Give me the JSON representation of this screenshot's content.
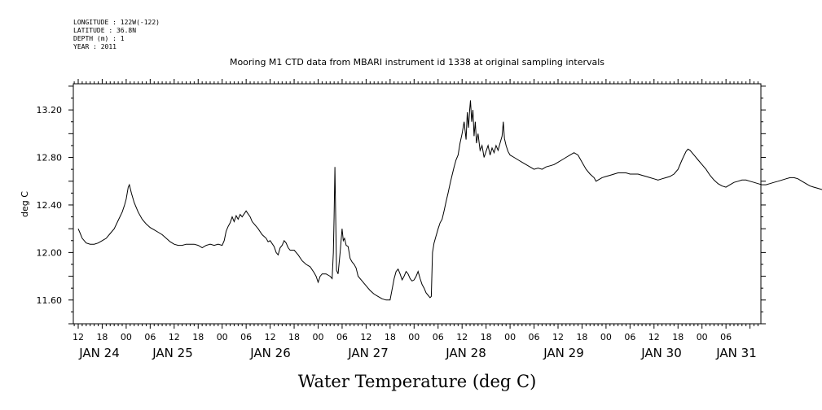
{
  "header": {
    "meta_lines": [
      "LONGITUDE : 122W(-122)",
      "LATITUDE : 36.8N",
      "DEPTH (m) : 1",
      "YEAR : 2011"
    ]
  },
  "chart_data": {
    "type": "line",
    "title": "Mooring M1 CTD data from MBARI instrument id 1338 at original sampling intervals",
    "xlabel": "Water Temperature (deg C)",
    "ylabel": "deg C",
    "ylim": [
      11.4,
      13.42
    ],
    "xlim_hours": [
      12,
      189
    ],
    "y_ticks": [
      "11.60",
      "12.00",
      "12.40",
      "12.80",
      "13.20"
    ],
    "hour_ticks": [
      "12",
      "18",
      "00",
      "06",
      "12",
      "18",
      "00",
      "06",
      "12",
      "18",
      "00",
      "06",
      "12",
      "18",
      "00",
      "06",
      "12",
      "18",
      "00",
      "06",
      "12",
      "18",
      "00",
      "06",
      "12",
      "18",
      "00",
      "06"
    ],
    "day_labels": [
      "JAN 24",
      "JAN 25",
      "JAN 26",
      "JAN 27",
      "JAN 28",
      "JAN 29",
      "JAN 30",
      "JAN 31"
    ],
    "grid": false,
    "series": [
      {
        "values": [
          [
            12.0,
            12.2
          ],
          [
            12.5,
            12.16
          ],
          [
            13.0,
            12.12
          ],
          [
            14.0,
            12.08
          ],
          [
            15.0,
            12.07
          ],
          [
            16.0,
            12.07
          ],
          [
            17.0,
            12.08
          ],
          [
            18.0,
            12.1
          ],
          [
            19.0,
            12.12
          ],
          [
            20.0,
            12.16
          ],
          [
            21.0,
            12.2
          ],
          [
            22.0,
            12.27
          ],
          [
            23.0,
            12.34
          ],
          [
            23.6,
            12.4
          ],
          [
            24.0,
            12.45
          ],
          [
            24.5,
            12.55
          ],
          [
            24.8,
            12.57
          ],
          [
            25.3,
            12.5
          ],
          [
            26.0,
            12.42
          ],
          [
            27.0,
            12.34
          ],
          [
            28.0,
            12.28
          ],
          [
            29.0,
            12.24
          ],
          [
            30.0,
            12.21
          ],
          [
            31.0,
            12.19
          ],
          [
            32.0,
            12.17
          ],
          [
            33.0,
            12.15
          ],
          [
            34.0,
            12.12
          ],
          [
            35.0,
            12.09
          ],
          [
            36.0,
            12.07
          ],
          [
            37.0,
            12.06
          ],
          [
            38.0,
            12.06
          ],
          [
            39.0,
            12.07
          ],
          [
            40.0,
            12.07
          ],
          [
            41.0,
            12.07
          ],
          [
            42.0,
            12.06
          ],
          [
            43.0,
            12.04
          ],
          [
            44.0,
            12.06
          ],
          [
            45.0,
            12.07
          ],
          [
            46.0,
            12.06
          ],
          [
            47.0,
            12.07
          ],
          [
            48.0,
            12.06
          ],
          [
            48.5,
            12.1
          ],
          [
            49.0,
            12.18
          ],
          [
            49.5,
            12.22
          ],
          [
            50.0,
            12.25
          ],
          [
            50.5,
            12.3
          ],
          [
            51.0,
            12.26
          ],
          [
            51.5,
            12.31
          ],
          [
            52.0,
            12.28
          ],
          [
            52.5,
            12.32
          ],
          [
            53.0,
            12.3
          ],
          [
            54.0,
            12.35
          ],
          [
            55.0,
            12.3
          ],
          [
            55.5,
            12.26
          ],
          [
            56.0,
            12.24
          ],
          [
            57.0,
            12.2
          ],
          [
            58.0,
            12.15
          ],
          [
            59.0,
            12.12
          ],
          [
            59.5,
            12.09
          ],
          [
            60.0,
            12.1
          ],
          [
            61.0,
            12.05
          ],
          [
            61.5,
            12.0
          ],
          [
            62.0,
            11.98
          ],
          [
            62.5,
            12.04
          ],
          [
            63.0,
            12.06
          ],
          [
            63.5,
            12.1
          ],
          [
            64.0,
            12.08
          ],
          [
            64.5,
            12.04
          ],
          [
            65.0,
            12.02
          ],
          [
            66.0,
            12.02
          ],
          [
            67.0,
            11.98
          ],
          [
            68.0,
            11.93
          ],
          [
            69.0,
            11.9
          ],
          [
            70.0,
            11.88
          ],
          [
            71.0,
            11.83
          ],
          [
            71.5,
            11.8
          ],
          [
            72.0,
            11.75
          ],
          [
            72.5,
            11.8
          ],
          [
            73.0,
            11.82
          ],
          [
            74.0,
            11.82
          ],
          [
            75.0,
            11.8
          ],
          [
            75.5,
            11.78
          ],
          [
            75.8,
            12.0
          ],
          [
            76.0,
            12.3
          ],
          [
            76.2,
            12.72
          ],
          [
            76.4,
            12.28
          ],
          [
            76.6,
            11.85
          ],
          [
            77.0,
            11.82
          ],
          [
            77.5,
            12.0
          ],
          [
            78.0,
            12.2
          ],
          [
            78.3,
            12.1
          ],
          [
            78.6,
            12.12
          ],
          [
            79.0,
            12.06
          ],
          [
            79.5,
            12.05
          ],
          [
            80.0,
            11.95
          ],
          [
            80.5,
            11.92
          ],
          [
            81.0,
            11.9
          ],
          [
            81.5,
            11.87
          ],
          [
            82.0,
            11.8
          ],
          [
            83.0,
            11.76
          ],
          [
            84.0,
            11.72
          ],
          [
            85.0,
            11.68
          ],
          [
            86.0,
            11.65
          ],
          [
            87.0,
            11.63
          ],
          [
            88.0,
            11.61
          ],
          [
            89.0,
            11.6
          ],
          [
            90.0,
            11.6
          ],
          [
            91.0,
            11.78
          ],
          [
            91.5,
            11.84
          ],
          [
            92.0,
            11.86
          ],
          [
            92.5,
            11.82
          ],
          [
            93.0,
            11.77
          ],
          [
            93.5,
            11.8
          ],
          [
            94.0,
            11.84
          ],
          [
            94.5,
            11.82
          ],
          [
            95.0,
            11.78
          ],
          [
            95.5,
            11.76
          ],
          [
            96.0,
            11.77
          ],
          [
            96.5,
            11.8
          ],
          [
            97.0,
            11.84
          ],
          [
            97.5,
            11.78
          ],
          [
            98.0,
            11.73
          ],
          [
            98.5,
            11.7
          ],
          [
            99.0,
            11.66
          ],
          [
            99.5,
            11.64
          ],
          [
            100.0,
            11.62
          ],
          [
            100.3,
            11.63
          ],
          [
            100.6,
            12.0
          ],
          [
            101.0,
            12.08
          ],
          [
            101.5,
            12.14
          ],
          [
            102.0,
            12.2
          ],
          [
            102.5,
            12.25
          ],
          [
            103.0,
            12.28
          ],
          [
            103.5,
            12.35
          ],
          [
            104.0,
            12.43
          ],
          [
            104.5,
            12.5
          ],
          [
            105.0,
            12.58
          ],
          [
            105.5,
            12.65
          ],
          [
            106.0,
            12.72
          ],
          [
            106.5,
            12.78
          ],
          [
            107.0,
            12.82
          ],
          [
            107.5,
            12.92
          ],
          [
            108.0,
            13.0
          ],
          [
            108.5,
            13.1
          ],
          [
            109.0,
            12.95
          ],
          [
            109.3,
            13.18
          ],
          [
            109.6,
            13.05
          ],
          [
            109.9,
            13.2
          ],
          [
            110.1,
            13.28
          ],
          [
            110.4,
            13.1
          ],
          [
            110.7,
            13.2
          ],
          [
            111.0,
            12.98
          ],
          [
            111.3,
            13.1
          ],
          [
            111.6,
            12.92
          ],
          [
            112.0,
            13.0
          ],
          [
            112.5,
            12.86
          ],
          [
            113.0,
            12.9
          ],
          [
            113.5,
            12.8
          ],
          [
            114.0,
            12.85
          ],
          [
            114.5,
            12.9
          ],
          [
            115.0,
            12.82
          ],
          [
            115.5,
            12.88
          ],
          [
            116.0,
            12.84
          ],
          [
            116.5,
            12.9
          ],
          [
            117.0,
            12.86
          ],
          [
            117.5,
            12.92
          ],
          [
            118.0,
            12.98
          ],
          [
            118.3,
            13.1
          ],
          [
            118.6,
            12.96
          ],
          [
            119.0,
            12.9
          ],
          [
            119.5,
            12.85
          ],
          [
            120.0,
            12.82
          ],
          [
            121.0,
            12.8
          ],
          [
            122.0,
            12.78
          ],
          [
            123.0,
            12.76
          ],
          [
            124.0,
            12.74
          ],
          [
            125.0,
            12.72
          ],
          [
            126.0,
            12.7
          ],
          [
            127.0,
            12.71
          ],
          [
            128.0,
            12.7
          ],
          [
            129.0,
            12.72
          ],
          [
            130.0,
            12.73
          ],
          [
            131.0,
            12.74
          ],
          [
            132.0,
            12.76
          ],
          [
            133.0,
            12.78
          ],
          [
            134.0,
            12.8
          ],
          [
            135.0,
            12.82
          ],
          [
            136.0,
            12.84
          ],
          [
            137.0,
            12.82
          ],
          [
            138.0,
            12.76
          ],
          [
            139.0,
            12.7
          ],
          [
            140.0,
            12.66
          ],
          [
            141.0,
            12.63
          ],
          [
            141.5,
            12.6
          ],
          [
            142.0,
            12.61
          ],
          [
            143.0,
            12.63
          ],
          [
            144.0,
            12.64
          ],
          [
            145.0,
            12.65
          ],
          [
            146.0,
            12.66
          ],
          [
            147.0,
            12.67
          ],
          [
            148.0,
            12.67
          ],
          [
            149.0,
            12.67
          ],
          [
            150.0,
            12.66
          ],
          [
            151.0,
            12.66
          ],
          [
            152.0,
            12.66
          ],
          [
            153.0,
            12.65
          ],
          [
            154.0,
            12.64
          ],
          [
            155.0,
            12.63
          ],
          [
            156.0,
            12.62
          ],
          [
            157.0,
            12.61
          ],
          [
            158.0,
            12.62
          ],
          [
            159.0,
            12.63
          ],
          [
            160.0,
            12.64
          ],
          [
            161.0,
            12.66
          ],
          [
            162.0,
            12.7
          ],
          [
            163.0,
            12.78
          ],
          [
            164.0,
            12.85
          ],
          [
            164.5,
            12.87
          ],
          [
            165.0,
            12.86
          ],
          [
            166.0,
            12.82
          ],
          [
            167.0,
            12.78
          ],
          [
            168.0,
            12.74
          ],
          [
            169.0,
            12.7
          ],
          [
            170.0,
            12.65
          ],
          [
            171.0,
            12.61
          ],
          [
            172.0,
            12.58
          ],
          [
            173.0,
            12.56
          ],
          [
            174.0,
            12.55
          ],
          [
            175.0,
            12.57
          ],
          [
            176.0,
            12.59
          ],
          [
            177.0,
            12.6
          ],
          [
            178.0,
            12.61
          ],
          [
            179.0,
            12.61
          ],
          [
            180.0,
            12.6
          ],
          [
            181.0,
            12.59
          ],
          [
            182.0,
            12.58
          ],
          [
            183.0,
            12.57
          ],
          [
            184.0,
            12.57
          ],
          [
            185.0,
            12.58
          ],
          [
            186.0,
            12.59
          ],
          [
            187.0,
            12.6
          ],
          [
            188.0,
            12.61
          ],
          [
            189.0,
            12.62
          ],
          [
            190.0,
            12.63
          ],
          [
            191.0,
            12.63
          ],
          [
            192.0,
            12.62
          ],
          [
            193.0,
            12.6
          ],
          [
            194.0,
            12.58
          ],
          [
            195.0,
            12.56
          ],
          [
            196.0,
            12.55
          ],
          [
            197.0,
            12.54
          ],
          [
            198.0,
            12.53
          ],
          [
            199.0,
            12.53
          ],
          [
            200.0,
            12.53
          ],
          [
            201.0,
            12.52
          ],
          [
            202.0,
            12.53
          ],
          [
            202.6,
            12.53
          ]
        ]
      }
    ]
  }
}
